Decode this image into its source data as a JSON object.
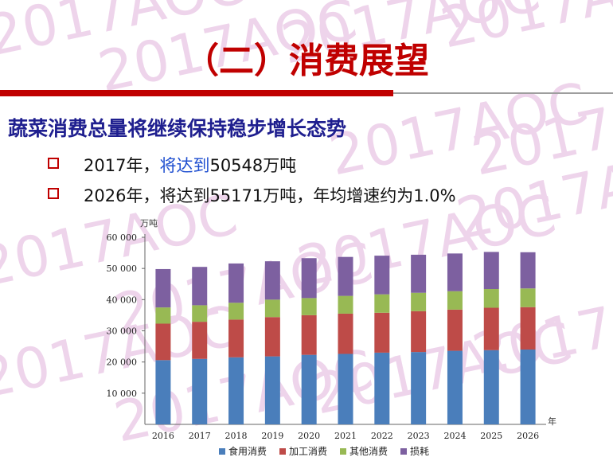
{
  "slide": {
    "title": "（二）消费展望",
    "heading": "蔬菜消费总量将继续保持稳步增长态势",
    "bullets": [
      {
        "prefix": "2017年，",
        "highlight": "将达到",
        "suffix": "50548万吨"
      },
      {
        "text": "2026年，将达到55171万吨，年均增速约为1.0%"
      }
    ],
    "watermark": "2017AOC"
  },
  "colors": {
    "title": "#c00000",
    "heading": "#1f1f8f",
    "bullet_box": "#c00000",
    "highlight": "#1f4fd0"
  },
  "chart_data": {
    "type": "bar",
    "stacked": true,
    "ylabel": "万吨",
    "xlabel": "年",
    "ylim": [
      0,
      60000
    ],
    "yticks": [
      {
        "value": 10000,
        "label": "10 000"
      },
      {
        "value": 20000,
        "label": "20 000"
      },
      {
        "value": 30000,
        "label": "30 000"
      },
      {
        "value": 40000,
        "label": "40 000"
      },
      {
        "value": 50000,
        "label": "50 000"
      },
      {
        "value": 60000,
        "label": "60 000"
      }
    ],
    "categories": [
      "2016",
      "2017",
      "2018",
      "2019",
      "2020",
      "2021",
      "2022",
      "2023",
      "2024",
      "2025",
      "2026"
    ],
    "series": [
      {
        "name": "食用消费",
        "color": "#4a7ebb",
        "values": [
          20600,
          21000,
          21500,
          21800,
          22300,
          22600,
          23000,
          23200,
          23600,
          23800,
          24000
        ]
      },
      {
        "name": "加工消费",
        "color": "#be4b48",
        "values": [
          11700,
          11900,
          12100,
          12600,
          12700,
          12900,
          12800,
          13100,
          13200,
          13600,
          13600
        ]
      },
      {
        "name": "其他消费",
        "color": "#98b954",
        "values": [
          5200,
          5300,
          5400,
          5600,
          5500,
          5700,
          5900,
          5900,
          5900,
          6000,
          6000
        ]
      },
      {
        "name": "损耗",
        "color": "#7d60a0",
        "values": [
          12300,
          12300,
          12600,
          12300,
          12800,
          12500,
          12400,
          12200,
          12100,
          11900,
          11600
        ]
      }
    ],
    "legend": "bottom",
    "grid": false
  }
}
